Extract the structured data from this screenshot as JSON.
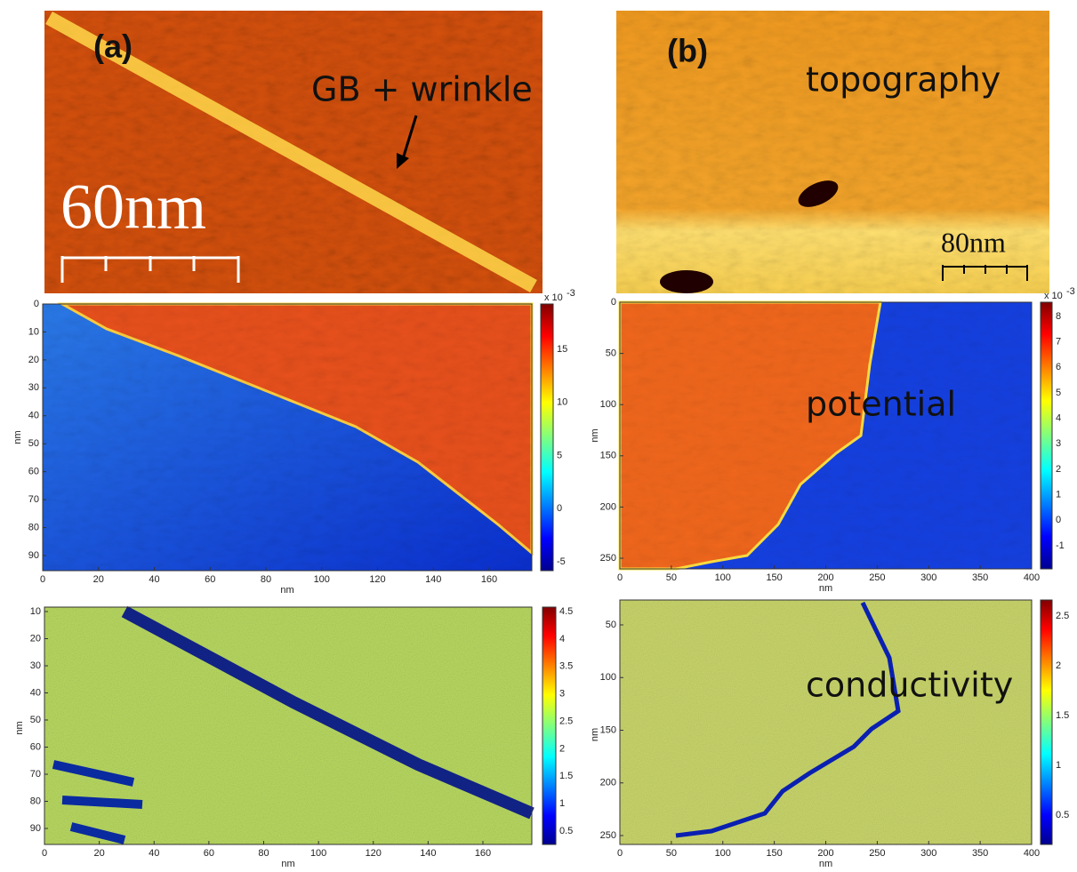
{
  "panel_a": {
    "label": "(a)",
    "topography": {
      "annotation": "GB + wrinkle",
      "scale_bar": "60nm"
    },
    "potential": {
      "x_label": "nm",
      "y_label": "nm",
      "x_ticks": [
        0,
        20,
        40,
        60,
        80,
        100,
        120,
        140,
        160
      ],
      "y_ticks": [
        0,
        10,
        20,
        30,
        40,
        50,
        60,
        70,
        80,
        90
      ],
      "colorbar_ticks": [
        15,
        10,
        5,
        0,
        -5
      ],
      "colorbar_multiplier": "x 10",
      "colorbar_exponent": "-3"
    },
    "conductivity": {
      "x_label": "nm",
      "y_label": "nm",
      "x_ticks": [
        0,
        20,
        40,
        60,
        80,
        100,
        120,
        140,
        160
      ],
      "y_ticks": [
        10,
        20,
        30,
        40,
        50,
        60,
        70,
        80,
        90
      ],
      "colorbar_ticks": [
        4.5,
        4,
        3.5,
        3,
        2.5,
        2,
        1.5,
        1,
        0.5
      ]
    }
  },
  "panel_b": {
    "label": "(b)",
    "topography": {
      "caption": "topography",
      "scale_bar": "80nm"
    },
    "potential": {
      "caption": "potential",
      "x_label": "nm",
      "y_label": "nm",
      "x_ticks": [
        0,
        50,
        100,
        150,
        200,
        250,
        300,
        350,
        400
      ],
      "y_ticks": [
        0,
        50,
        100,
        150,
        200,
        250
      ],
      "colorbar_ticks": [
        8,
        7,
        6,
        5,
        4,
        3,
        2,
        1,
        0,
        -1
      ],
      "colorbar_multiplier": "x 10",
      "colorbar_exponent": "-3"
    },
    "conductivity": {
      "caption": "conductivity",
      "x_label": "nm",
      "y_label": "nm",
      "x_ticks": [
        0,
        50,
        100,
        150,
        200,
        250,
        300,
        350,
        400
      ],
      "y_ticks": [
        50,
        100,
        150,
        200,
        250
      ],
      "colorbar_ticks": [
        2.5,
        2,
        1.5,
        1,
        0.5
      ]
    }
  }
}
